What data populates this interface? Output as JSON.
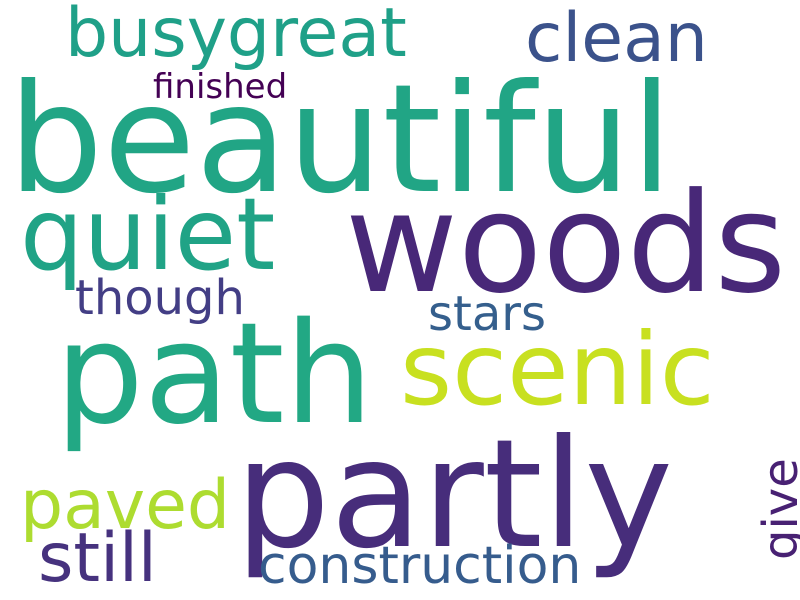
{
  "words": {
    "beautiful": {
      "text": "beautiful",
      "color": "#21a585"
    },
    "woods": {
      "text": "woods",
      "color": "#482878"
    },
    "path": {
      "text": "path",
      "color": "#22a884"
    },
    "partly": {
      "text": "partly",
      "color": "#472d7b"
    },
    "scenic": {
      "text": "scenic",
      "color": "#c8e020"
    },
    "quiet": {
      "text": "quiet",
      "color": "#20a386"
    },
    "busygreat": {
      "text": "busygreat",
      "color": "#1fa088"
    },
    "clean": {
      "text": "clean",
      "color": "#3b528b"
    },
    "paved": {
      "text": "paved",
      "color": "#addc30"
    },
    "still": {
      "text": "still",
      "color": "#46327e"
    },
    "construction": {
      "text": "construction",
      "color": "#365c8d"
    },
    "though": {
      "text": "though",
      "color": "#433e85"
    },
    "stars": {
      "text": "stars",
      "color": "#355f8d"
    },
    "finished": {
      "text": "finished",
      "color": "#440154"
    },
    "give": {
      "text": "give",
      "color": "#482173"
    }
  }
}
